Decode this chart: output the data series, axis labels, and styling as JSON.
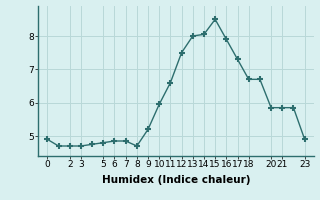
{
  "xlabel": "Humidex (Indice chaleur)",
  "x": [
    0,
    1,
    2,
    3,
    4,
    5,
    6,
    7,
    8,
    9,
    10,
    11,
    12,
    13,
    14,
    15,
    16,
    17,
    18,
    19,
    20,
    21,
    22,
    23
  ],
  "y": [
    4.9,
    4.7,
    4.7,
    4.7,
    4.75,
    4.8,
    4.85,
    4.85,
    4.7,
    5.2,
    5.95,
    6.6,
    7.5,
    8.0,
    8.05,
    8.5,
    7.9,
    7.3,
    6.7,
    6.7,
    5.85,
    5.85,
    5.85,
    4.9
  ],
  "line_color": "#2d6e6e",
  "marker": "+",
  "marker_size": 5,
  "bg_color": "#d9f0f0",
  "grid_color": "#b8d8d8",
  "ylim": [
    4.4,
    8.9
  ],
  "yticks": [
    5,
    6,
    7,
    8
  ],
  "xticks": [
    0,
    2,
    3,
    5,
    6,
    7,
    8,
    9,
    10,
    11,
    12,
    13,
    14,
    15,
    16,
    17,
    18,
    20,
    21,
    23
  ],
  "tick_fontsize": 6.5,
  "xlabel_fontsize": 7.5
}
